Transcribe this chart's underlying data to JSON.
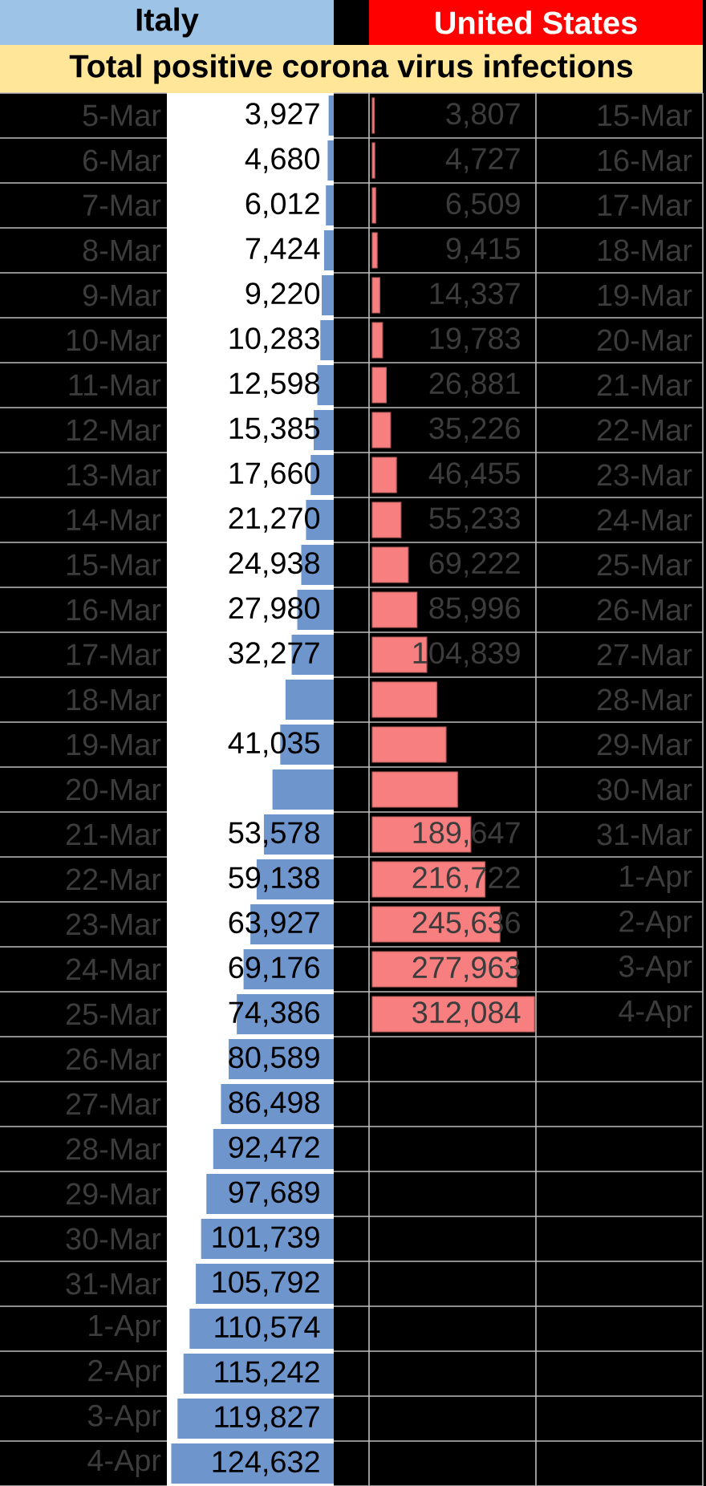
{
  "chart_data": [
    {
      "type": "bar",
      "orientation": "horizontal",
      "title": "Italy",
      "subtitle": "Total positive corona virus infections",
      "categories": [
        "5-Mar",
        "6-Mar",
        "7-Mar",
        "8-Mar",
        "9-Mar",
        "10-Mar",
        "11-Mar",
        "12-Mar",
        "13-Mar",
        "14-Mar",
        "15-Mar",
        "16-Mar",
        "17-Mar",
        "18-Mar",
        "19-Mar",
        "20-Mar",
        "21-Mar",
        "22-Mar",
        "23-Mar",
        "24-Mar",
        "25-Mar",
        "26-Mar",
        "27-Mar",
        "28-Mar",
        "29-Mar",
        "30-Mar",
        "31-Mar",
        "1-Apr",
        "2-Apr",
        "3-Apr",
        "4-Apr"
      ],
      "values": [
        3927,
        4680,
        6012,
        7424,
        9220,
        10283,
        12598,
        15385,
        17660,
        21270,
        24938,
        27980,
        32277,
        37000,
        41035,
        47000,
        53578,
        59138,
        63927,
        69176,
        74386,
        80589,
        86498,
        92472,
        97689,
        101739,
        105792,
        110574,
        115242,
        119827,
        124632
      ],
      "value_labels": [
        "3,927",
        "4,680",
        "6,012",
        "7,424",
        "9,220",
        "10,283",
        "12,598",
        "15,385",
        "17,660",
        "21,270",
        "24,938",
        "27,980",
        "32,277",
        null,
        "41,035",
        null,
        "53,578",
        "59,138",
        "63,927",
        "69,176",
        "74,386",
        "80,589",
        "86,498",
        "92,472",
        "97,689",
        "101,739",
        "105,792",
        "110,574",
        "115,242",
        "119,827",
        "124,632"
      ],
      "color": "#6f95cd",
      "xlim": [
        128000,
        0
      ],
      "tick_labels": "y"
    },
    {
      "type": "bar",
      "orientation": "horizontal",
      "title": "United States",
      "categories": [
        "15-Mar",
        "16-Mar",
        "17-Mar",
        "18-Mar",
        "19-Mar",
        "20-Mar",
        "21-Mar",
        "22-Mar",
        "23-Mar",
        "24-Mar",
        "25-Mar",
        "26-Mar",
        "27-Mar",
        "28-Mar",
        "29-Mar",
        "30-Mar",
        "31-Mar",
        "1-Apr",
        "2-Apr",
        "3-Apr",
        "4-Apr"
      ],
      "values": [
        3807,
        4727,
        6509,
        9415,
        14337,
        19783,
        26881,
        35226,
        46455,
        55233,
        69222,
        85996,
        104839,
        124000,
        142000,
        164000,
        189647,
        216722,
        245636,
        277963,
        312084
      ],
      "value_labels": [
        "3,807",
        "4,727",
        "6,509",
        "9,415",
        "14,337",
        "19,783",
        "26,881",
        "35,226",
        "46,455",
        "55,233",
        "69,222",
        "85,996",
        "104,839",
        null,
        null,
        null,
        "189,647",
        "216,722",
        "245,636",
        "277,963",
        "312,084"
      ],
      "color": "#f77f7f",
      "xlim": [
        0,
        315000
      ],
      "tick_labels": "y"
    }
  ]
}
